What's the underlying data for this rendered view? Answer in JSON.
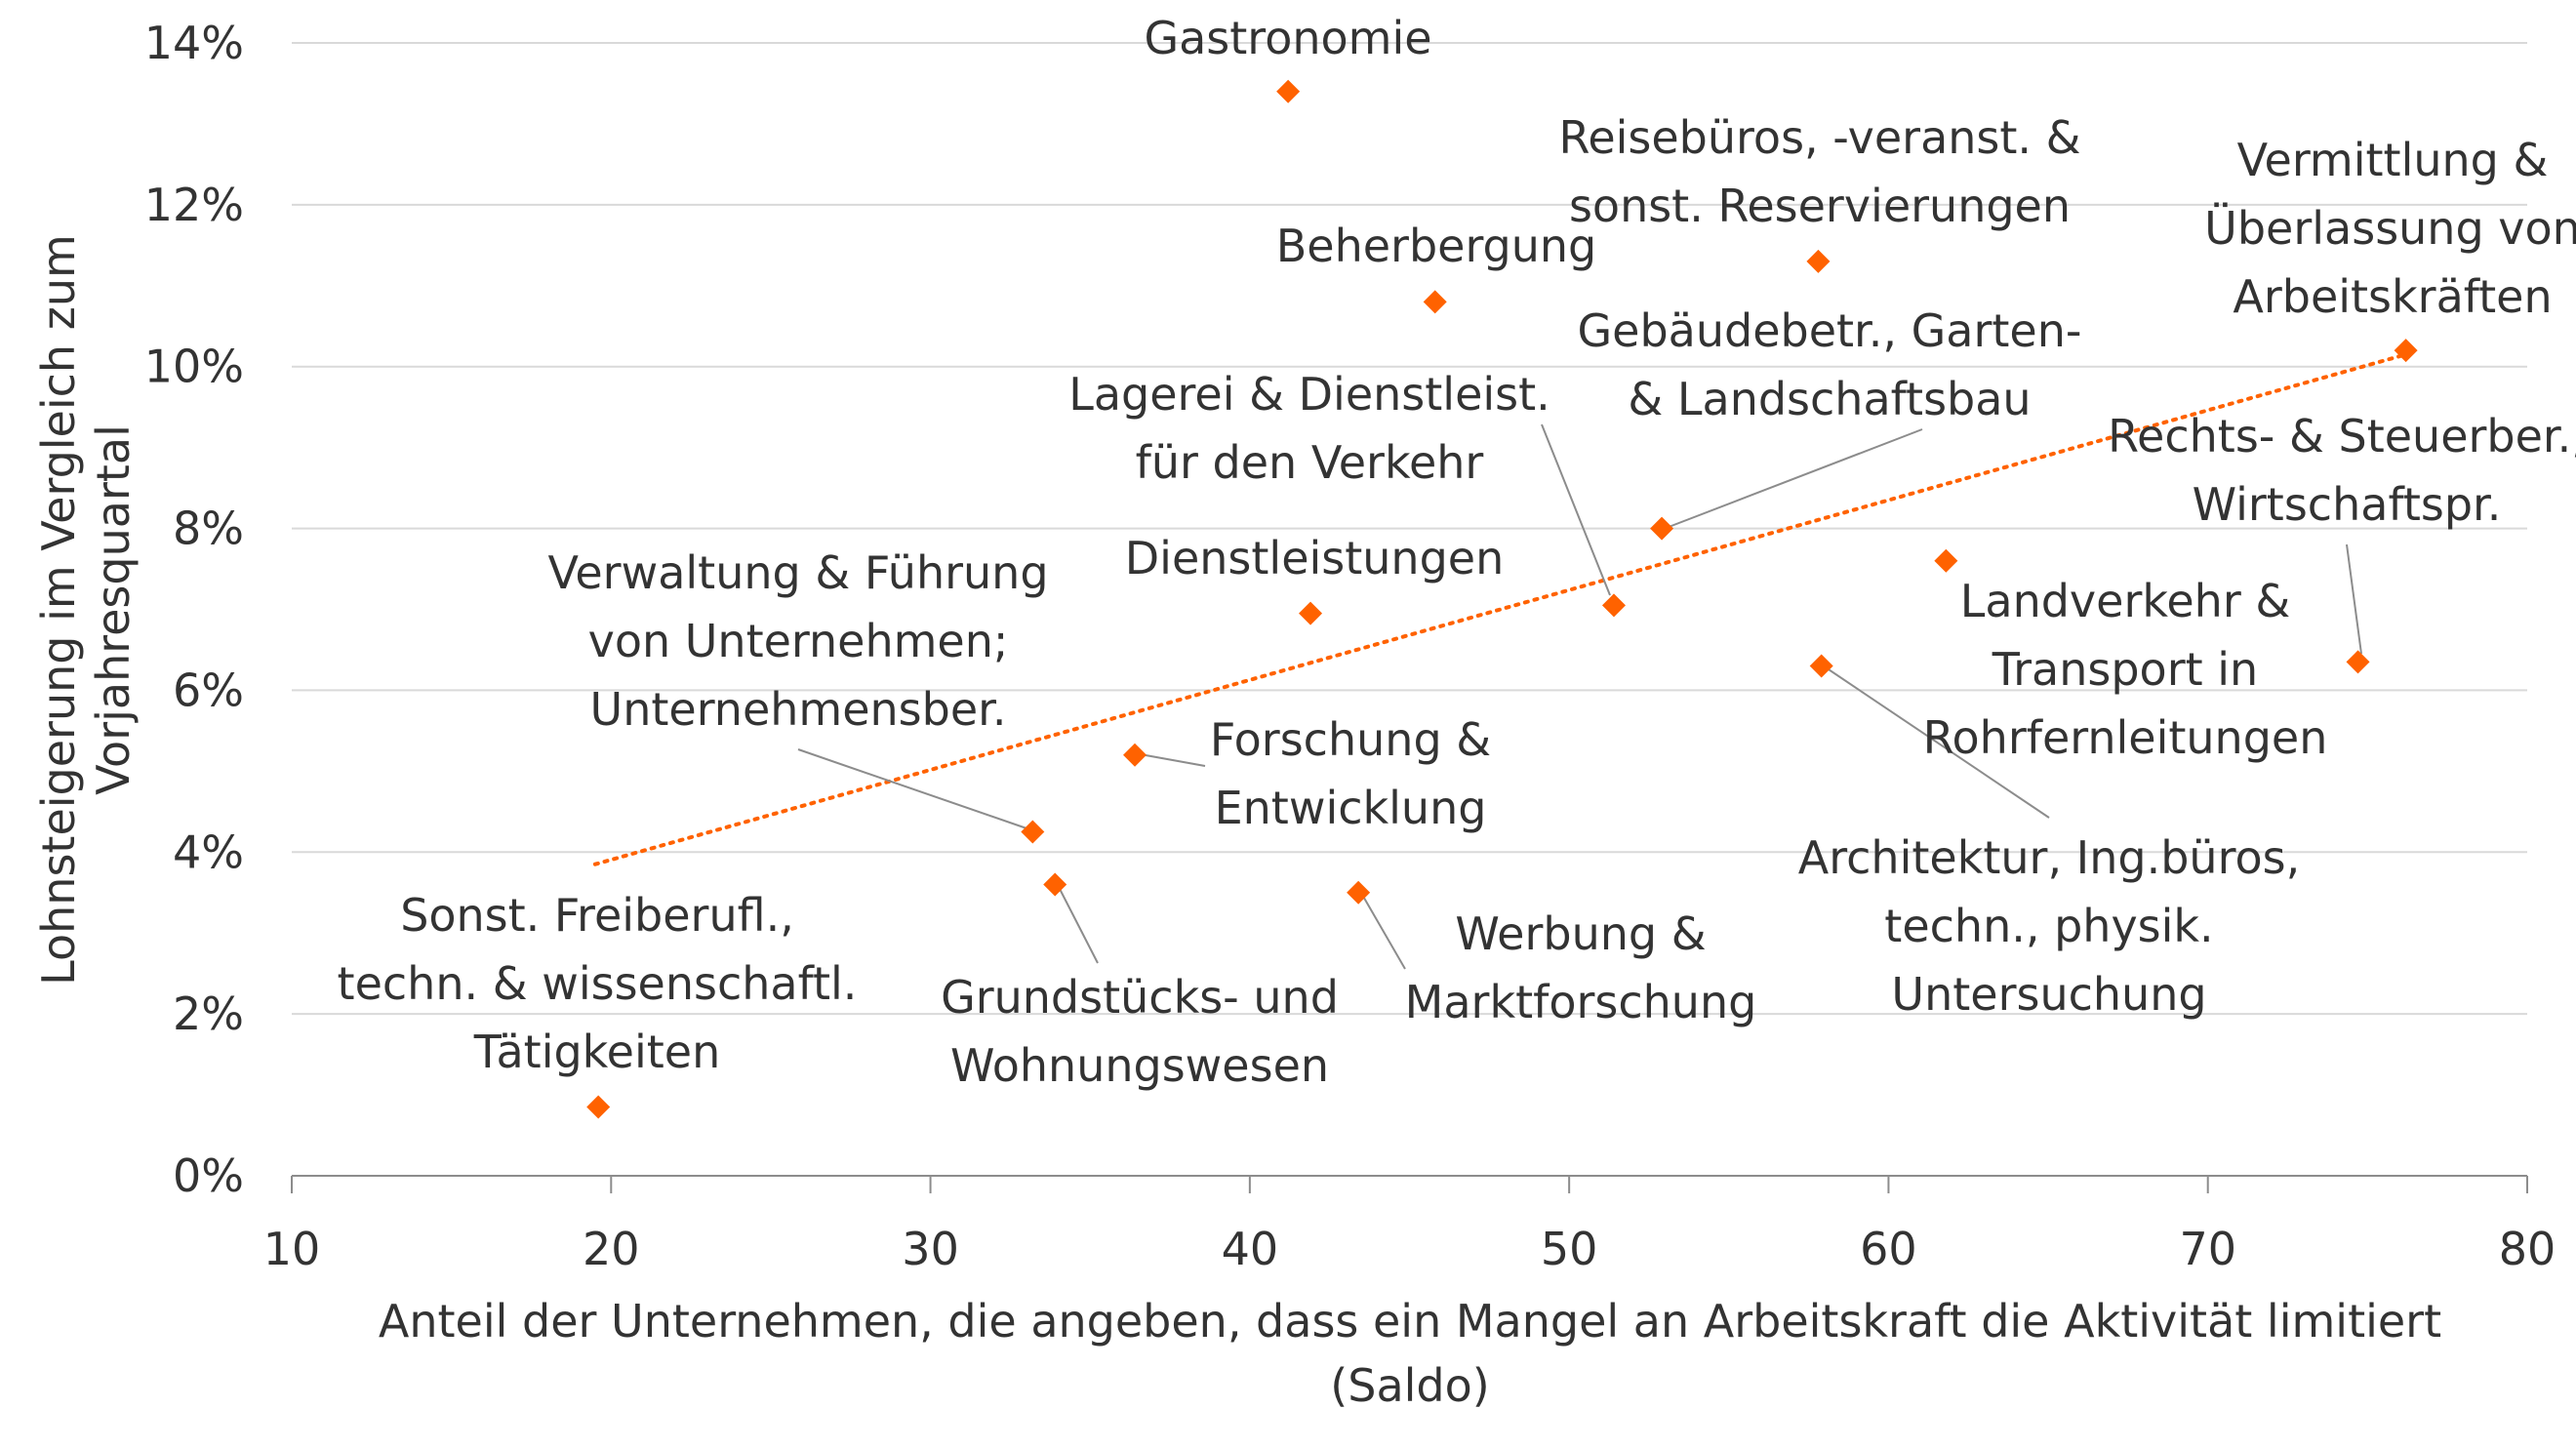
{
  "chart_data": {
    "type": "scatter",
    "xlabel": [
      "Anteil der Unternehmen, die angeben, dass ein Mangel an Arbeitskraft die Aktivität limitiert",
      "(Saldo)"
    ],
    "ylabel": [
      "Lohnsteigerung im Vergleich zum",
      "Vorjahresquartal"
    ],
    "xlim": [
      10,
      80
    ],
    "ylim": [
      0,
      14
    ],
    "x_ticks": [
      10,
      20,
      30,
      40,
      50,
      60,
      70,
      80
    ],
    "y_ticks": [
      0,
      2,
      4,
      6,
      8,
      10,
      12,
      14
    ],
    "y_tick_labels": [
      "0%",
      "2%",
      "4%",
      "6%",
      "8%",
      "10%",
      "12%",
      "14%"
    ],
    "grid": "horizontal",
    "marker_color": "#FF6200",
    "trendline": {
      "x": [
        19.5,
        76.2
      ],
      "y": [
        3.85,
        10.15
      ],
      "color": "#FF6200",
      "style": "dotted"
    },
    "points": [
      {
        "x": 41.2,
        "y": 13.4,
        "label": [
          "Gastronomie"
        ]
      },
      {
        "x": 57.8,
        "y": 11.3,
        "label": [
          "Reisebüros, -veranst. &",
          "sonst. Reservierungen"
        ]
      },
      {
        "x": 45.8,
        "y": 10.8,
        "label": [
          "Beherbergung"
        ]
      },
      {
        "x": 76.2,
        "y": 10.2,
        "label": [
          "Vermittlung &",
          "Überlassung von",
          "Arbeitskräften"
        ]
      },
      {
        "x": 52.9,
        "y": 8.0,
        "label": [
          "Gebäudebetr., Garten-",
          "& Landschaftsbau"
        ]
      },
      {
        "x": 51.4,
        "y": 7.05,
        "label": [
          "Lagerei & Dienstleist.",
          "für den Verkehr"
        ]
      },
      {
        "x": 61.8,
        "y": 7.6,
        "label": [
          "Landverkehr &",
          "Transport in",
          "Rohrfernleitungen"
        ]
      },
      {
        "x": 74.7,
        "y": 6.35,
        "label": [
          "Rechts- & Steuerber.,",
          "Wirtschaftspr."
        ]
      },
      {
        "x": 41.9,
        "y": 6.95,
        "label": [
          "Dienstleistungen"
        ]
      },
      {
        "x": 57.9,
        "y": 6.3,
        "label": [
          "Architektur, Ing.büros,",
          "techn., physik.",
          "Untersuchung"
        ]
      },
      {
        "x": 36.4,
        "y": 5.2,
        "label": [
          "Forschung &",
          "Entwicklung"
        ]
      },
      {
        "x": 33.2,
        "y": 4.25,
        "label": [
          "Verwaltung & Führung",
          "von Unternehmen;",
          "Unternehmensber."
        ]
      },
      {
        "x": 33.9,
        "y": 3.6,
        "label": [
          "Grundstücks- und",
          "Wohnungswesen"
        ]
      },
      {
        "x": 43.4,
        "y": 3.5,
        "label": [
          "Werbung &",
          "Marktforschung"
        ]
      },
      {
        "x": 19.6,
        "y": 0.85,
        "label": [
          "Sonst. Freiberufl.,",
          "techn. & wissenschaftl.",
          "Tätigkeiten"
        ]
      }
    ]
  }
}
